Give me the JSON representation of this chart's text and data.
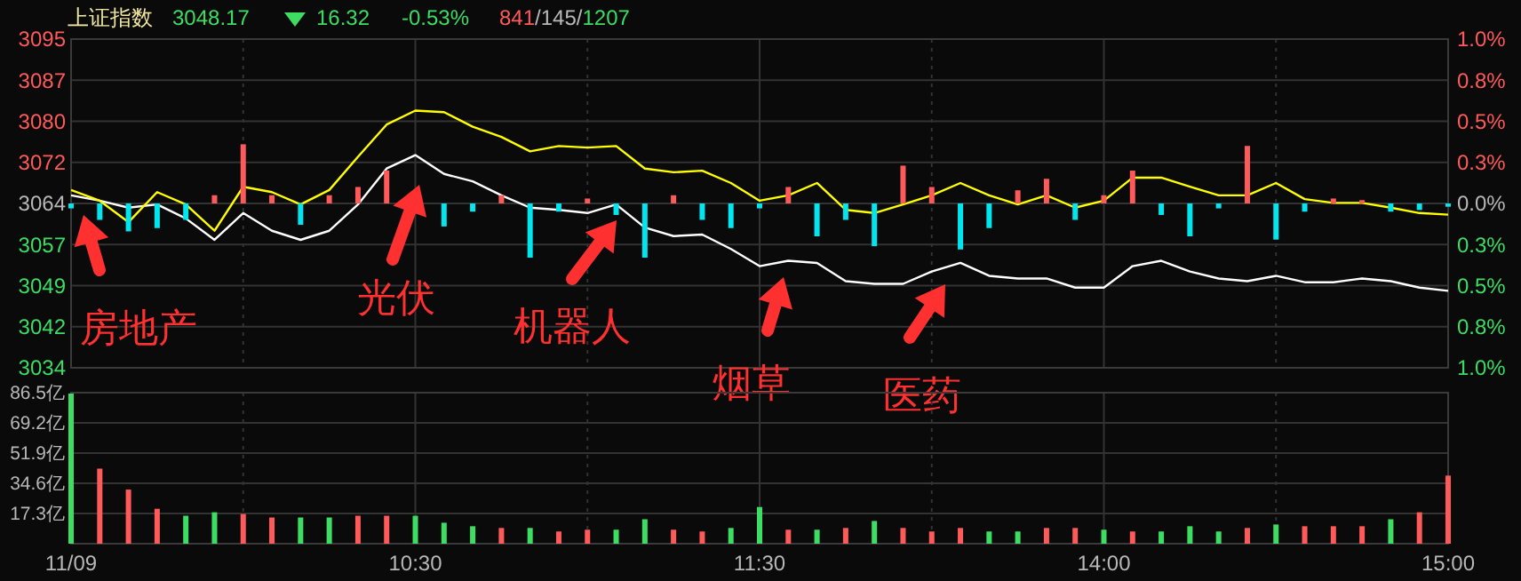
{
  "chart_data": [
    {
      "type": "line",
      "title": "上证指数",
      "annotations": [
        "3048.17",
        "16.32",
        "-0.53%",
        "841/145/1207",
        "房地产",
        "光伏",
        "机器人",
        "烟草",
        "医药"
      ],
      "categories": [
        null,
        null,
        null,
        null,
        null,
        null,
        null,
        null,
        null,
        null,
        null,
        null,
        null,
        null,
        null,
        null,
        null,
        null,
        null,
        null,
        null,
        null,
        null,
        null,
        null,
        null,
        null,
        null,
        null,
        null,
        null,
        null,
        null,
        null,
        null,
        null,
        null,
        null,
        null,
        null,
        null,
        null,
        null,
        null,
        null,
        null,
        null,
        null,
        null
      ],
      "series": [
        {
          "color": "#ffffff",
          "values": [
            3066,
            3065,
            3063.7,
            3064.3,
            3061.7,
            3057.7,
            3062.7,
            3059.4,
            3057.7,
            3059.4,
            3064.3,
            3071,
            3073.5,
            3070,
            3068.6,
            3066,
            3063.7,
            3063.3,
            3062.7,
            3064.3,
            3060,
            3058.4,
            3058.7,
            3056,
            3052.8,
            3053.8,
            3053.4,
            3050,
            3049.5,
            3049.5,
            3051.8,
            3053.4,
            3051,
            3050.5,
            3050.5,
            3048.8,
            3048.8,
            3052.8,
            3053.8,
            3051.8,
            3050.5,
            3050,
            3051,
            3049.8,
            3049.8,
            3050.5,
            3050,
            3048.8,
            3048.2
          ]
        },
        {
          "color": "#ffff00",
          "values": [
            3067,
            3065,
            3061,
            3066.6,
            3064.3,
            3059.4,
            3067.6,
            3066.6,
            3064.3,
            3067,
            3073.2,
            3079.2,
            3081.8,
            3081.5,
            3078.8,
            3076.9,
            3074.2,
            3075.2,
            3074.9,
            3075.2,
            3071,
            3070.3,
            3070.6,
            3068.3,
            3065,
            3066,
            3068.3,
            3063.3,
            3062.7,
            3064.3,
            3066,
            3068.3,
            3066,
            3064.3,
            3066,
            3063.7,
            3065,
            3069.3,
            3069.3,
            3067.6,
            3066,
            3066,
            3068.3,
            3065.3,
            3064.6,
            3064.6,
            3063.7,
            3062.7,
            3062.4
          ]
        },
        {
          "type": "bar",
          "axis": "y2",
          "color": "#ff5a5a",
          "values": [
            null,
            null,
            null,
            null,
            null,
            0.05,
            0.36,
            0.05,
            null,
            0.05,
            0.1,
            0.2,
            null,
            null,
            null,
            0.05,
            null,
            null,
            0.03,
            null,
            null,
            0.05,
            null,
            null,
            null,
            0.1,
            null,
            null,
            null,
            0.23,
            0.1,
            null,
            null,
            0.08,
            0.15,
            null,
            0.05,
            0.2,
            null,
            null,
            null,
            0.35,
            null,
            null,
            0.03,
            0.02,
            null,
            null,
            null
          ]
        },
        {
          "type": "bar",
          "axis": "y2",
          "color": "#00e5ee",
          "values": [
            -0.03,
            -0.1,
            -0.17,
            -0.15,
            -0.1,
            null,
            null,
            null,
            -0.13,
            null,
            null,
            null,
            null,
            -0.14,
            -0.05,
            null,
            -0.33,
            -0.05,
            null,
            -0.07,
            -0.33,
            null,
            -0.1,
            -0.15,
            -0.03,
            null,
            -0.2,
            -0.1,
            -0.26,
            null,
            null,
            -0.28,
            -0.15,
            null,
            null,
            -0.1,
            null,
            null,
            -0.07,
            -0.2,
            -0.03,
            null,
            -0.22,
            -0.05,
            null,
            null,
            -0.05,
            -0.04,
            -0.02
          ]
        }
      ],
      "ylim": [
        3033.85,
        3095.13
      ],
      "yticks": [
        {
          "value": 3095.13,
          "label": "3095"
        },
        {
          "value": 3087.47,
          "label": "3087"
        },
        {
          "value": 3079.81,
          "label": "3080"
        },
        {
          "value": 3072.15,
          "label": "3072"
        },
        {
          "value": 3064.49,
          "label": "3064"
        },
        {
          "value": 3056.83,
          "label": "3057"
        },
        {
          "value": 3049.17,
          "label": "3049"
        },
        {
          "value": 3041.51,
          "label": "3042"
        },
        {
          "value": 3033.85,
          "label": "3034"
        }
      ],
      "y2lim": [
        -1,
        1
      ],
      "y2ticks": [
        {
          "value": 1,
          "label": "1.0%"
        },
        {
          "value": 0.75,
          "label": "0.8%"
        },
        {
          "value": 0.5,
          "label": "0.5%"
        },
        {
          "value": 0.25,
          "label": "0.3%"
        },
        {
          "value": 0,
          "label": "0.0%"
        },
        {
          "value": -0.25,
          "label": "0.3%"
        },
        {
          "value": -0.5,
          "label": "0.5%"
        },
        {
          "value": -0.75,
          "label": "0.8%"
        },
        {
          "value": -1,
          "label": "1.0%"
        }
      ],
      "grid": true,
      "tick_labels": "y"
    },
    {
      "type": "bar",
      "categories": [
        "11/09",
        null,
        null,
        null,
        null,
        null,
        null,
        null,
        null,
        null,
        null,
        null,
        "10:30",
        null,
        null,
        null,
        null,
        null,
        null,
        null,
        null,
        null,
        null,
        null,
        "11:30",
        null,
        null,
        null,
        null,
        null,
        null,
        null,
        null,
        null,
        null,
        null,
        "14:00",
        null,
        null,
        null,
        null,
        null,
        null,
        null,
        null,
        null,
        null,
        null,
        "15:00"
      ],
      "values": [
        86,
        43,
        31,
        20,
        16,
        18,
        17,
        15,
        15,
        15,
        16,
        16,
        16,
        12,
        10,
        9,
        9,
        7,
        8,
        8,
        14,
        8,
        7,
        9,
        21,
        8,
        8,
        9,
        13,
        9,
        7,
        9,
        7,
        7,
        9,
        9,
        8,
        7,
        7,
        10,
        7,
        9,
        11,
        10,
        10,
        10,
        14,
        18,
        39
      ],
      "colors": [
        "#3ddc63",
        "#ff5a5a",
        "#ff5a5a",
        "#ff5a5a",
        "#3ddc63",
        "#3ddc63",
        "#ff5a5a",
        "#ff5a5a",
        "#3ddc63",
        "#3ddc63",
        "#ff5a5a",
        "#ff5a5a",
        "#3ddc63",
        "#3ddc63",
        "#3ddc63",
        "#ff5a5a",
        "#3ddc63",
        "#ff5a5a",
        "#ff5a5a",
        "#3ddc63",
        "#3ddc63",
        "#ff5a5a",
        "#ff5a5a",
        "#3ddc63",
        "#3ddc63",
        "#ff5a5a",
        "#3ddc63",
        "#ff5a5a",
        "#3ddc63",
        "#ff5a5a",
        "#ff5a5a",
        "#ff5a5a",
        "#3ddc63",
        "#3ddc63",
        "#ff5a5a",
        "#ff5a5a",
        "#3ddc63",
        "#ff5a5a",
        "#3ddc63",
        "#3ddc63",
        "#3ddc63",
        "#ff5a5a",
        "#3ddc63",
        "#ff5a5a",
        "#ff5a5a",
        "#ff5a5a",
        "#3ddc63",
        "#ff5a5a",
        "#ff5a5a"
      ],
      "ylim": [
        0,
        86.5
      ],
      "yticks": [
        {
          "value": 17.3,
          "label": "17.3亿"
        },
        {
          "value": 34.6,
          "label": "34.6亿"
        },
        {
          "value": 51.9,
          "label": "51.9亿"
        },
        {
          "value": 69.2,
          "label": "69.2亿"
        },
        {
          "value": 86.5,
          "label": "86.5亿"
        }
      ],
      "grid": true
    }
  ]
}
